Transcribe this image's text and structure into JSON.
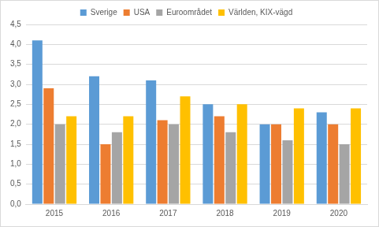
{
  "chart_data": {
    "type": "bar",
    "categories": [
      "2015",
      "2016",
      "2017",
      "2018",
      "2019",
      "2020"
    ],
    "series": [
      {
        "name": "Sverige",
        "color": "#5b9bd5",
        "values": [
          4.1,
          3.2,
          3.1,
          2.5,
          2.0,
          2.3
        ]
      },
      {
        "name": "USA",
        "color": "#ed7d31",
        "values": [
          2.9,
          1.5,
          2.1,
          2.2,
          2.0,
          2.0
        ]
      },
      {
        "name": "Euroområdet",
        "color": "#a5a5a5",
        "values": [
          2.0,
          1.8,
          2.0,
          1.8,
          1.6,
          1.5
        ]
      },
      {
        "name": "Världen, KIX-vägd",
        "color": "#ffc000",
        "values": [
          2.2,
          2.2,
          2.7,
          2.5,
          2.4,
          2.4
        ]
      }
    ],
    "ylim": [
      0,
      4.5
    ],
    "yticks": [
      {
        "value": 0,
        "label": "0,0"
      },
      {
        "value": 0.5,
        "label": "0,5"
      },
      {
        "value": 1,
        "label": "1,0"
      },
      {
        "value": 1.5,
        "label": "1,5"
      },
      {
        "value": 2,
        "label": "2,0"
      },
      {
        "value": 2.5,
        "label": "2,5"
      },
      {
        "value": 3,
        "label": "3,0"
      },
      {
        "value": 3.5,
        "label": "3,5"
      },
      {
        "value": 4,
        "label": "4,0"
      },
      {
        "value": 4.5,
        "label": "4,5"
      }
    ],
    "grid": true,
    "legend": "top"
  }
}
